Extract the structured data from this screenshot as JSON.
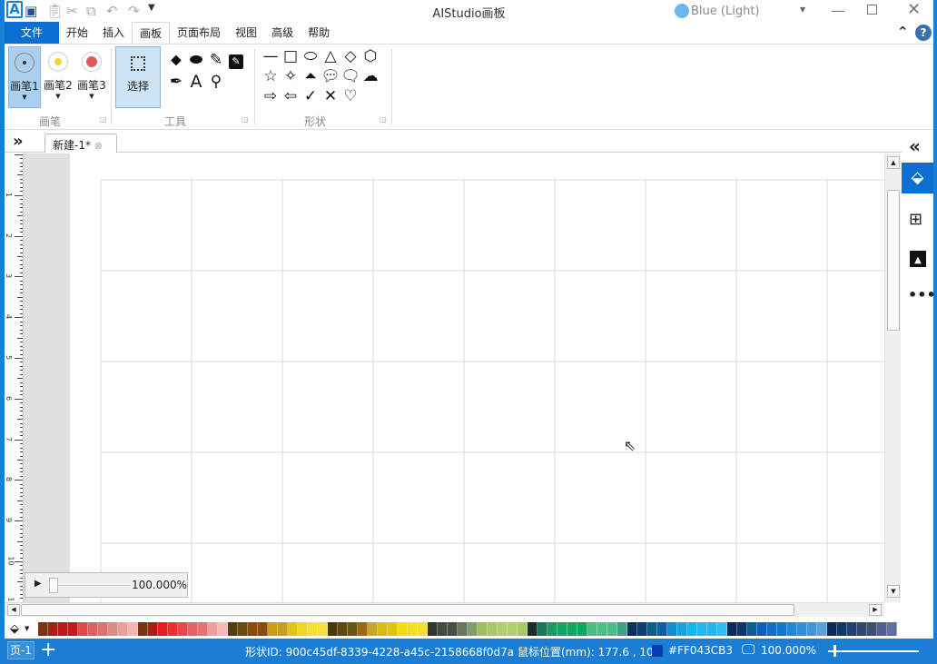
{
  "app": {
    "title": "AIStudio画板",
    "theme": "Blue (Light)"
  },
  "menu": {
    "file": "文件",
    "items": [
      "开始",
      "插入",
      "画板",
      "页面布局",
      "视图",
      "高级",
      "帮助"
    ],
    "active": 2
  },
  "ribbon": {
    "pen_group": {
      "label": "画笔",
      "pens": [
        {
          "label": "画笔1",
          "color": "#333333"
        },
        {
          "label": "画笔2",
          "color": "#f1d635"
        },
        {
          "label": "画笔3",
          "color": "#e05a5a"
        }
      ]
    },
    "tools_group": {
      "label": "工具",
      "select": "选择",
      "tools": [
        "eraser-icon",
        "clear-eraser-icon",
        "pencil-icon",
        "edit-box-icon",
        "pen-nib-icon",
        "text-icon",
        "eyedropper-icon"
      ]
    },
    "shapes_group": {
      "label": "形状",
      "shapes": [
        "line",
        "rectangle",
        "ellipse",
        "triangle",
        "diamond",
        "hexagon",
        "star",
        "four-point-star",
        "three-point-star",
        "speech-oval",
        "speech-rect",
        "cloud",
        "arrow-right",
        "arrow-left",
        "check",
        "cross",
        "heart"
      ]
    }
  },
  "tabs": [
    {
      "label": "新建-1*"
    }
  ],
  "ruler": {
    "labels": [
      "1",
      "2",
      "3",
      "4",
      "5",
      "6",
      "7",
      "8",
      "9",
      "10",
      "11"
    ]
  },
  "zoom_panel": {
    "value": "100.000%"
  },
  "palette": [
    "#7a3510",
    "#a8200f",
    "#c0181a",
    "#c8161c",
    "#e04a4a",
    "#e06060",
    "#e07070",
    "#d89080",
    "#eba09a",
    "#f0b8b0",
    "#7a3510",
    "#b01c14",
    "#e81c1c",
    "#ec3030",
    "#e84848",
    "#e86060",
    "#e87070",
    "#eea0a0",
    "#f3bcbc",
    "#524010",
    "#6a4c08",
    "#8a4a08",
    "#8c4c0a",
    "#c8a010",
    "#c8a018",
    "#e0c410",
    "#f4d820",
    "#f8e030",
    "#f8e040",
    "#4a3a08",
    "#5c4a10",
    "#6a5610",
    "#a06810",
    "#c8a820",
    "#d8bc10",
    "#e0c408",
    "#f4dc14",
    "#f4e020",
    "#f4e030",
    "#303830",
    "#404c40",
    "#445040",
    "#687860",
    "#80a068",
    "#a0c060",
    "#a8c868",
    "#b0d070",
    "#b0d070",
    "#a8c868",
    "#1a3028",
    "#1a7858",
    "#10a060",
    "#10a860",
    "#10a860",
    "#10a860",
    "#48c080",
    "#48c080",
    "#48c080",
    "#40a080",
    "#0c3060",
    "#0c4070",
    "#0c6088",
    "#0c60a8",
    "#1090d0",
    "#10a8e0",
    "#10b8f0",
    "#20b8f0",
    "#20b8f0",
    "#30c0f0",
    "#0c2a58",
    "#0c3868",
    "#0c6090",
    "#0c60c0",
    "#1070c8",
    "#1078d0",
    "#2088d8",
    "#3090d8",
    "#4098d8",
    "#58a0d8",
    "#102858",
    "#103868",
    "#204070",
    "#304870",
    "#3c5068",
    "#506090",
    "#6070a0",
    "#6888a8",
    "#8890b0",
    "#88a8b0",
    "#182038",
    "#182050",
    "#384878",
    "#604898",
    "#7848a8",
    "#8050b0",
    "#8858b0",
    "#9060b0",
    "#9870b8",
    "#9878b8",
    "#202820",
    "#303030",
    "#404040",
    "#585858",
    "#686860",
    "#808080",
    "#909090",
    "#a0a0a0",
    "#b0b0b0",
    "#c8c8c8"
  ],
  "status": {
    "page": "页-1",
    "shape_id_label": "形状ID:",
    "shape_id": "900c45df-8339-4228-a45c-2158668f0d7a",
    "mouse_label": "鼠标位置(mm):",
    "mouse_pos": "177.6 , 10",
    "color_hex": "#FF043CB3",
    "color": "#043CB3",
    "zoom": "100.000%"
  }
}
